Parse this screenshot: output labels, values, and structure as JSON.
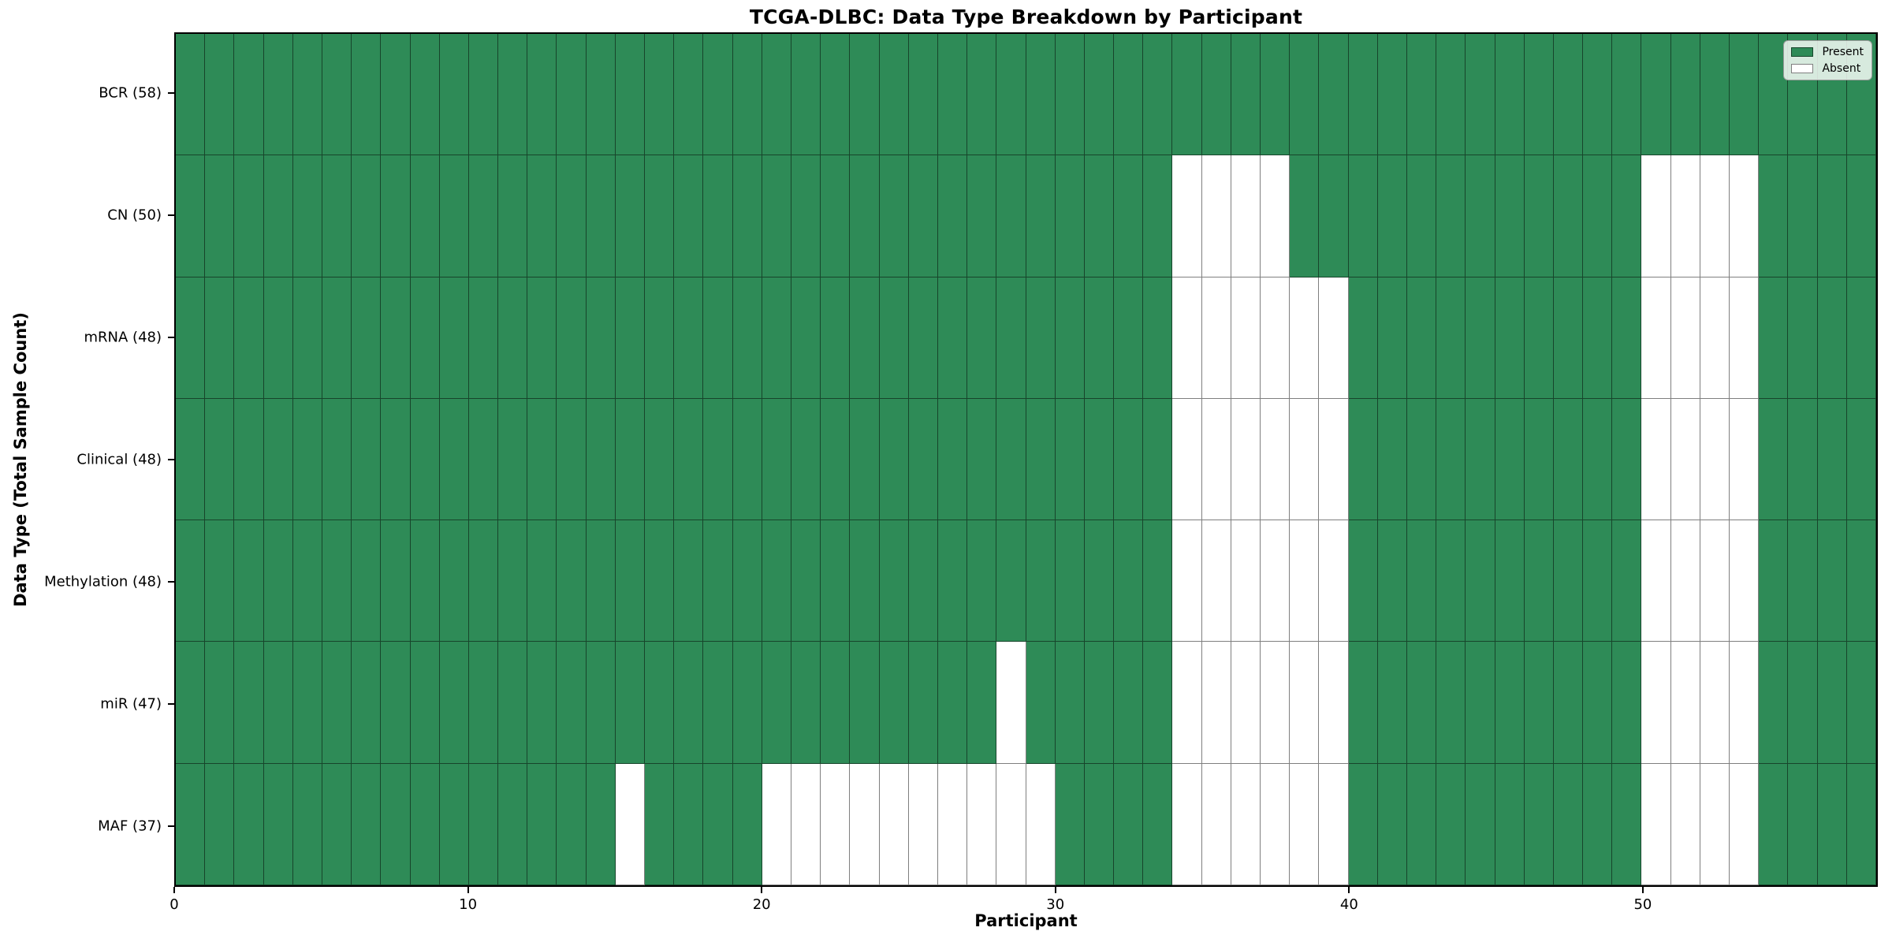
{
  "figure": {
    "background": "#ffffff"
  },
  "chart_data": {
    "type": "heatmap",
    "title": "TCGA-DLBC: Data Type Breakdown by Participant",
    "xlabel": "Participant",
    "ylabel": "Data Type (Total Sample Count)",
    "n_participants": 58,
    "x_range": [
      0,
      58
    ],
    "x_ticks": [
      0,
      10,
      20,
      30,
      40,
      50
    ],
    "grid": true,
    "colors": {
      "present": "#2e8b57",
      "absent": "#ffffff",
      "grid_line": "rgba(0,0,0,0.5)",
      "spine": "#000000"
    },
    "legend": {
      "position": "upper right",
      "entries": [
        {
          "label": "Present",
          "color_key": "present"
        },
        {
          "label": "Absent",
          "color_key": "absent"
        }
      ]
    },
    "rows": [
      {
        "label": "BCR (58)",
        "data_type": "BCR",
        "total_samples": 58,
        "absent_participants": []
      },
      {
        "label": "CN (50)",
        "data_type": "CN",
        "total_samples": 50,
        "absent_participants": [
          34,
          35,
          36,
          37,
          50,
          51,
          52,
          53
        ]
      },
      {
        "label": "mRNA (48)",
        "data_type": "mRNA",
        "total_samples": 48,
        "absent_participants": [
          34,
          35,
          36,
          37,
          38,
          39,
          50,
          51,
          52,
          53
        ]
      },
      {
        "label": "Clinical (48)",
        "data_type": "Clinical",
        "total_samples": 48,
        "absent_participants": [
          34,
          35,
          36,
          37,
          38,
          39,
          50,
          51,
          52,
          53
        ]
      },
      {
        "label": "Methylation (48)",
        "data_type": "Methylation",
        "total_samples": 48,
        "absent_participants": [
          34,
          35,
          36,
          37,
          38,
          39,
          50,
          51,
          52,
          53
        ]
      },
      {
        "label": "miR (47)",
        "data_type": "miR",
        "total_samples": 47,
        "absent_participants": [
          28,
          34,
          35,
          36,
          37,
          38,
          39,
          50,
          51,
          52,
          53
        ]
      },
      {
        "label": "MAF (37)",
        "data_type": "MAF",
        "total_samples": 37,
        "absent_participants": [
          15,
          20,
          21,
          22,
          23,
          24,
          25,
          26,
          27,
          28,
          29,
          34,
          35,
          36,
          37,
          38,
          39,
          50,
          51,
          52,
          53
        ]
      }
    ]
  }
}
